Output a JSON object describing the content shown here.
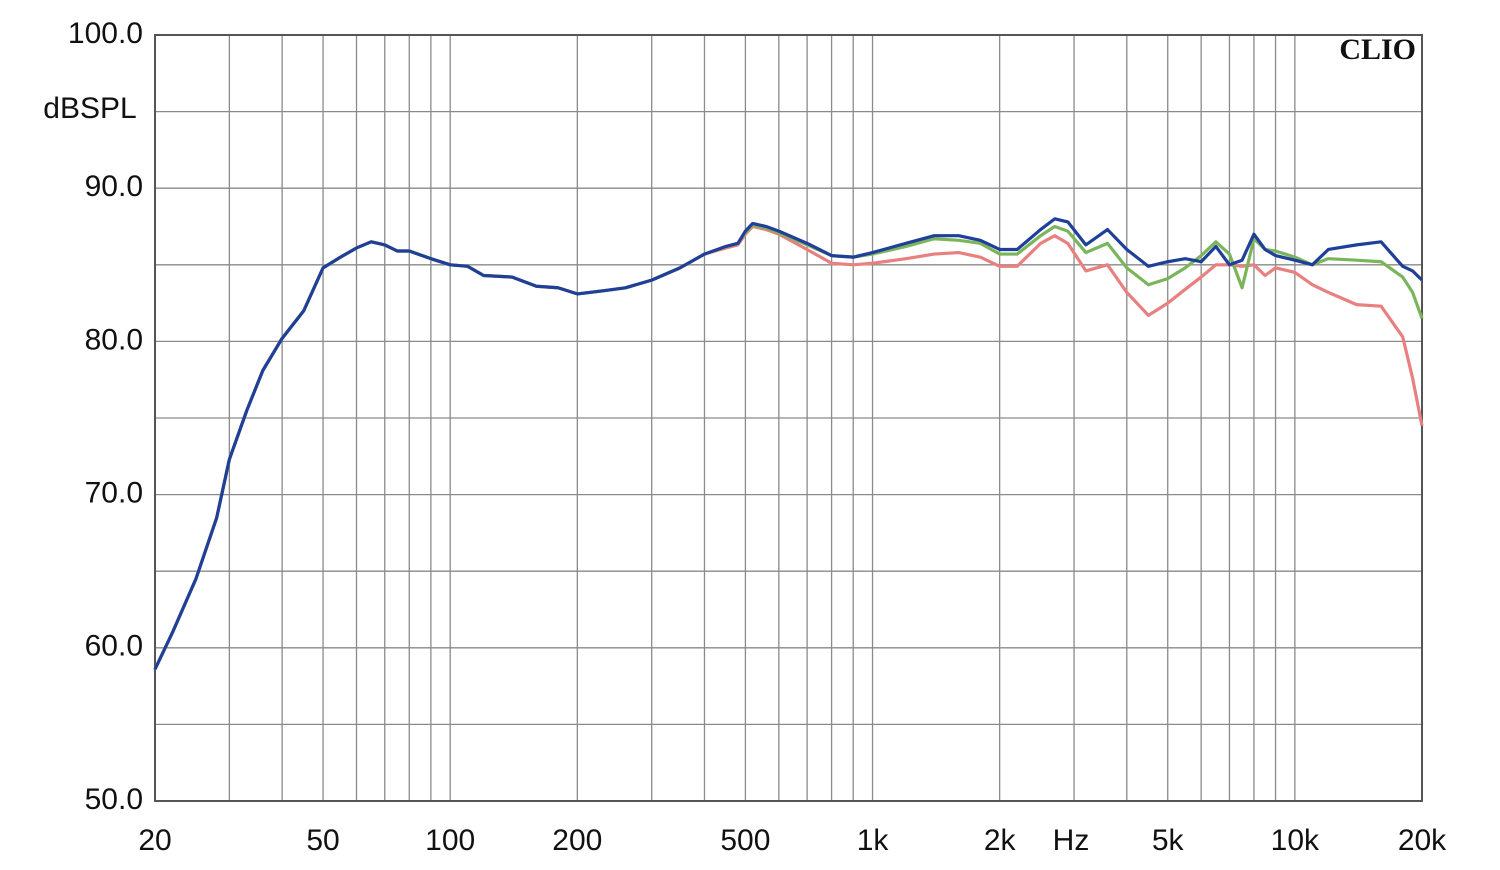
{
  "chart_data": {
    "type": "line",
    "y_label": "dBSPL",
    "x_label": "Hz",
    "watermark": "CLIO",
    "x_scale": "log",
    "grid": true,
    "xlim": [
      20,
      20000
    ],
    "ylim": [
      50,
      100
    ],
    "xticks": [
      20,
      50,
      100,
      200,
      500,
      {
        "value": 1000,
        "label": "1k"
      },
      {
        "value": 2000,
        "label": "2k"
      },
      {
        "value": 5000,
        "label": "5k"
      },
      {
        "value": 10000,
        "label": "10k"
      },
      {
        "value": 20000,
        "label": "20k"
      }
    ],
    "x_minor_ticks": [
      30,
      40,
      60,
      70,
      80,
      90,
      300,
      400,
      600,
      700,
      800,
      900,
      3000,
      4000,
      6000,
      7000,
      8000,
      9000
    ],
    "yticks": [
      {
        "value": 50,
        "label": "50.0"
      },
      {
        "value": 60,
        "label": "60.0"
      },
      {
        "value": 70,
        "label": "70.0"
      },
      {
        "value": 80,
        "label": "80.0"
      },
      {
        "value": 90,
        "label": "90.0"
      },
      {
        "value": 100,
        "label": "100.0"
      }
    ],
    "y_minor_ticks": [
      55,
      65,
      75,
      85,
      95
    ],
    "x": [
      20,
      22,
      25,
      28,
      30,
      33,
      36,
      40,
      45,
      50,
      55,
      60,
      65,
      70,
      75,
      80,
      90,
      100,
      110,
      120,
      140,
      160,
      180,
      200,
      230,
      260,
      300,
      350,
      400,
      450,
      480,
      500,
      520,
      560,
      600,
      700,
      800,
      900,
      1000,
      1200,
      1400,
      1600,
      1800,
      2000,
      2200,
      2500,
      2700,
      2900,
      3200,
      3600,
      4000,
      4500,
      5000,
      5500,
      6000,
      6500,
      7000,
      7500,
      8000,
      8500,
      9000,
      10000,
      11000,
      12000,
      14000,
      16000,
      18000,
      19000,
      20000
    ],
    "series": [
      {
        "color": "#e88080",
        "values": [
          58.6,
          61,
          64.5,
          68.5,
          72.3,
          75.5,
          78.1,
          80.2,
          82,
          84.8,
          85.5,
          86.1,
          86.5,
          86.3,
          85.9,
          85.9,
          85.4,
          85,
          84.9,
          84.3,
          84.2,
          83.6,
          83.5,
          83.1,
          83.3,
          83.5,
          84,
          84.8,
          85.7,
          86.1,
          86.3,
          87,
          87.5,
          87.3,
          87,
          86,
          85.1,
          85,
          85.1,
          85.4,
          85.7,
          85.8,
          85.5,
          84.9,
          84.9,
          86.4,
          86.9,
          86.4,
          84.6,
          85,
          83.2,
          81.7,
          82.5,
          83.4,
          84.2,
          85,
          85,
          84.9,
          85,
          84.3,
          84.8,
          84.5,
          83.7,
          83.2,
          82.4,
          82.3,
          80.3,
          77.6,
          74.5
        ]
      },
      {
        "color": "#7ab55c",
        "values": [
          58.6,
          61,
          64.5,
          68.5,
          72.3,
          75.5,
          78.1,
          80.2,
          82,
          84.8,
          85.5,
          86.1,
          86.5,
          86.3,
          85.9,
          85.9,
          85.4,
          85,
          84.9,
          84.3,
          84.2,
          83.6,
          83.5,
          83.1,
          83.3,
          83.5,
          84,
          84.8,
          85.7,
          86.2,
          86.4,
          87.1,
          87.6,
          87.4,
          87.1,
          86.3,
          85.6,
          85.5,
          85.7,
          86.2,
          86.7,
          86.6,
          86.4,
          85.7,
          85.7,
          86.9,
          87.5,
          87.2,
          85.8,
          86.4,
          84.8,
          83.7,
          84.1,
          84.8,
          85.6,
          86.5,
          85.7,
          83.5,
          86.7,
          86,
          85.9,
          85.5,
          85,
          85.4,
          85.3,
          85.2,
          84.2,
          83.2,
          81.5
        ]
      },
      {
        "color": "#1f3f99",
        "values": [
          58.6,
          61,
          64.5,
          68.5,
          72.3,
          75.5,
          78.1,
          80.2,
          82,
          84.8,
          85.5,
          86.1,
          86.5,
          86.3,
          85.9,
          85.9,
          85.4,
          85,
          84.9,
          84.3,
          84.2,
          83.6,
          83.5,
          83.1,
          83.3,
          83.5,
          84,
          84.8,
          85.7,
          86.2,
          86.4,
          87.2,
          87.7,
          87.5,
          87.2,
          86.4,
          85.6,
          85.5,
          85.8,
          86.4,
          86.9,
          86.9,
          86.6,
          86,
          86,
          87.3,
          88,
          87.8,
          86.3,
          87.3,
          86,
          84.9,
          85.2,
          85.4,
          85.2,
          86.2,
          85,
          85.3,
          87,
          86,
          85.6,
          85.3,
          85,
          86,
          86.3,
          86.5,
          84.9,
          84.6,
          84
        ]
      }
    ]
  }
}
